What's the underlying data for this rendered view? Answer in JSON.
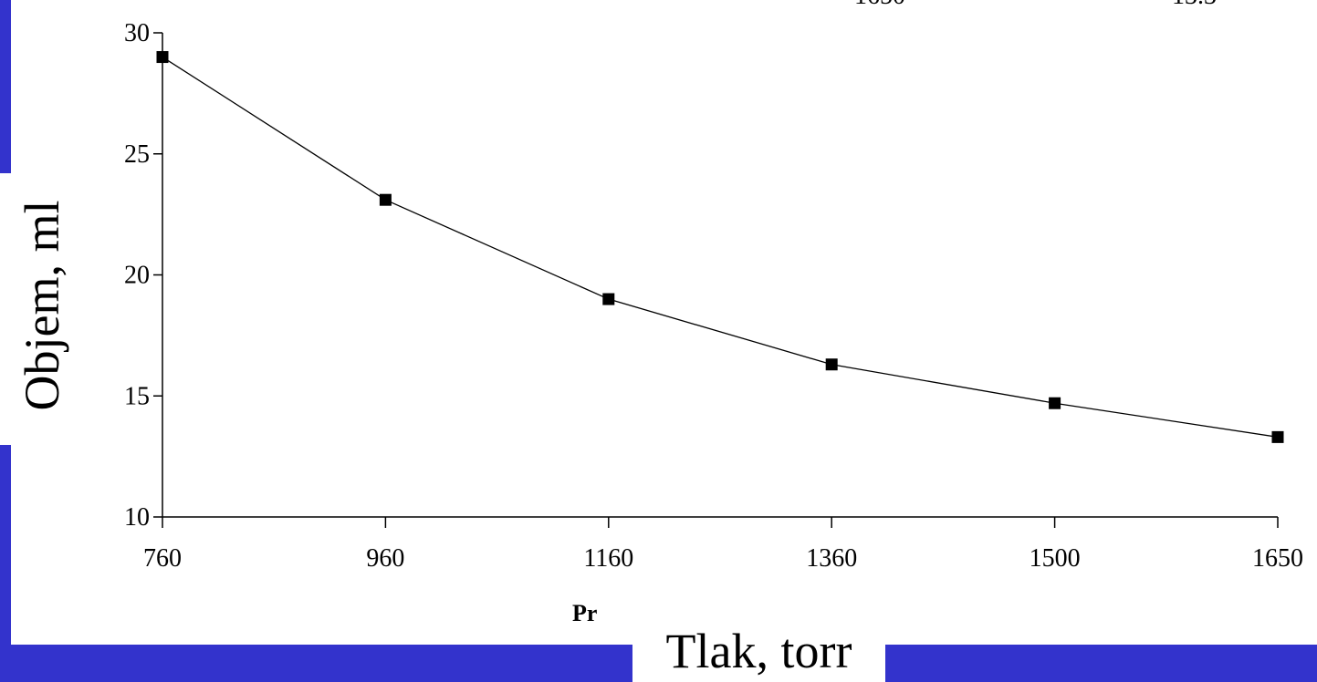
{
  "colors": {
    "frame": "#3333CC",
    "line": "#000000",
    "marker": "#000000"
  },
  "chart_data": {
    "type": "line",
    "x": [
      760,
      960,
      1160,
      1360,
      1500,
      1650
    ],
    "y": [
      29,
      23.1,
      19,
      16.3,
      14.7,
      13.3
    ],
    "x_tick_labels": [
      "760",
      "960",
      "1160",
      "1360",
      "1500",
      "1650"
    ],
    "y_ticks": [
      10,
      15,
      20,
      25,
      30
    ],
    "y_tick_labels": [
      "10",
      "15",
      "20",
      "25",
      "30"
    ],
    "ylim": [
      10,
      30
    ],
    "xlabel": "Tlak, torr",
    "ylabel": "Objem, ml",
    "marker": "square",
    "grid": false
  },
  "fragments": {
    "x_label_partial": "Pr",
    "top_partial_1": "1650",
    "top_partial_2": "13.3"
  }
}
